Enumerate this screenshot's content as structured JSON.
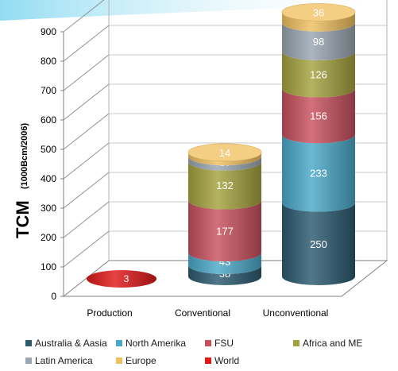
{
  "chart_data": {
    "type": "bar",
    "stacked": true,
    "three_d": true,
    "ylabel": "TCM",
    "ylabel_unit": "(1000Bcm/2006)",
    "ylim": [
      0,
      900
    ],
    "yticks": [
      "0",
      "100",
      "200",
      "300",
      "400",
      "500",
      "600",
      "700",
      "800",
      "900"
    ],
    "categories": [
      "Production",
      "Conventional",
      "Unconventional"
    ],
    "series": [
      {
        "name": "Australia & Aasia",
        "color": "#2b5a70",
        "values": [
          null,
          38,
          250
        ],
        "labels": [
          null,
          "38",
          "250"
        ]
      },
      {
        "name": "North Amerika",
        "color": "#4aa8c8",
        "values": [
          null,
          43,
          233
        ],
        "labels": [
          null,
          "43",
          "233"
        ]
      },
      {
        "name": "FSU",
        "color": "#c8505e",
        "values": [
          null,
          177,
          156
        ],
        "labels": [
          null,
          "177",
          "156"
        ]
      },
      {
        "name": "Africa and ME",
        "color": "#a4a23e",
        "values": [
          null,
          132,
          126
        ],
        "labels": [
          null,
          "132",
          "126"
        ]
      },
      {
        "name": "Latin America",
        "color": "#9aa6b2",
        "values": [
          null,
          18,
          98
        ],
        "labels": [
          null,
          "18",
          "98"
        ]
      },
      {
        "name": "Europe",
        "color": "#efc060",
        "values": [
          null,
          14,
          36
        ],
        "labels": [
          null,
          "14",
          "36"
        ]
      },
      {
        "name": "World",
        "color": "#e01818",
        "values": [
          3,
          null,
          null
        ],
        "labels": [
          "3",
          null,
          null
        ]
      }
    ],
    "legend": {
      "placement": "bottom",
      "items": [
        {
          "label": "Australia & Aasia",
          "color": "#2b5a70"
        },
        {
          "label": "North Amerika",
          "color": "#4aa8c8"
        },
        {
          "label": "FSU",
          "color": "#c8505e"
        },
        {
          "label": "Africa and ME",
          "color": "#a4a23e"
        },
        {
          "label": "Latin America",
          "color": "#9aa6b2"
        },
        {
          "label": "Europe",
          "color": "#efc060"
        },
        {
          "label": "World",
          "color": "#e01818"
        }
      ]
    },
    "grid": true,
    "background_accent": "#5ec8e8"
  }
}
